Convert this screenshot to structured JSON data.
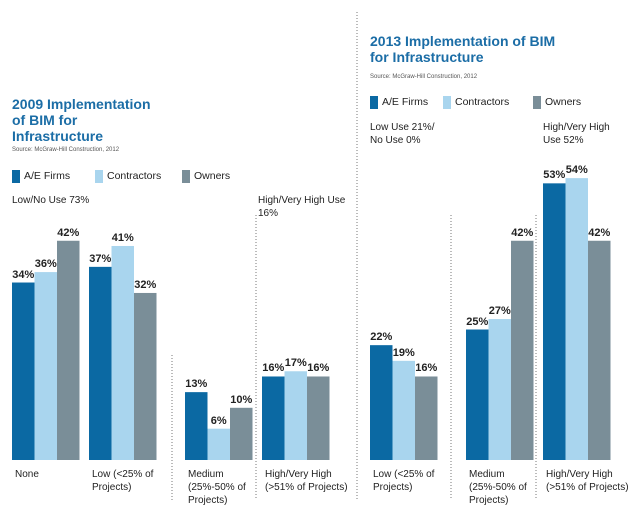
{
  "chart_data": [
    {
      "type": "bar",
      "title": "2009 Implementation of BIM for Infrastructure",
      "source": "Source: McGraw-Hill Construction, 2012",
      "categories": [
        "None",
        "Low (<25% of Projects)",
        "Medium (25%-50% of Projects)",
        "High/Very High (>51% of Projects)"
      ],
      "annotations": [
        "Low/No Use 73%",
        "High/Very High Use 16%"
      ],
      "series": [
        {
          "name": "A/E Firms",
          "color": "#0b69a3",
          "values": [
            34,
            37,
            13,
            16
          ],
          "value_labels": [
            "34%",
            "37%",
            "13%",
            "16%"
          ]
        },
        {
          "name": "Contractors",
          "color": "#a9d5ee",
          "values": [
            36,
            41,
            6,
            17
          ],
          "value_labels": [
            "36%",
            "41%",
            "6%",
            "17%"
          ]
        },
        {
          "name": "Owners",
          "color": "#7a8e98",
          "values": [
            42,
            32,
            10,
            16
          ],
          "value_labels": [
            "42%",
            "32%",
            "10%",
            "16%"
          ]
        }
      ]
    },
    {
      "type": "bar",
      "title": "2013 Implementation of BIM for Infrastructure",
      "source": "Source: McGraw-Hill Construction, 2012",
      "categories": [
        "Low (<25% of Projects)",
        "Medium (25%-50% of Projects)",
        "High/Very High (>51% of Projects)"
      ],
      "annotations": [
        "Low Use 21%/ No Use 0%",
        "High/Very High Use 52%"
      ],
      "series": [
        {
          "name": "A/E Firms",
          "color": "#0b69a3",
          "values": [
            22,
            25,
            53
          ],
          "value_labels": [
            "22%",
            "25%",
            "53%"
          ]
        },
        {
          "name": "Contractors",
          "color": "#a9d5ee",
          "values": [
            19,
            27,
            54
          ],
          "value_labels": [
            "19%",
            "27%",
            "54%"
          ]
        },
        {
          "name": "Owners",
          "color": "#7a8e98",
          "values": [
            16,
            42,
            42
          ],
          "value_labels": [
            "16%",
            "42%",
            "42%"
          ]
        }
      ]
    }
  ]
}
